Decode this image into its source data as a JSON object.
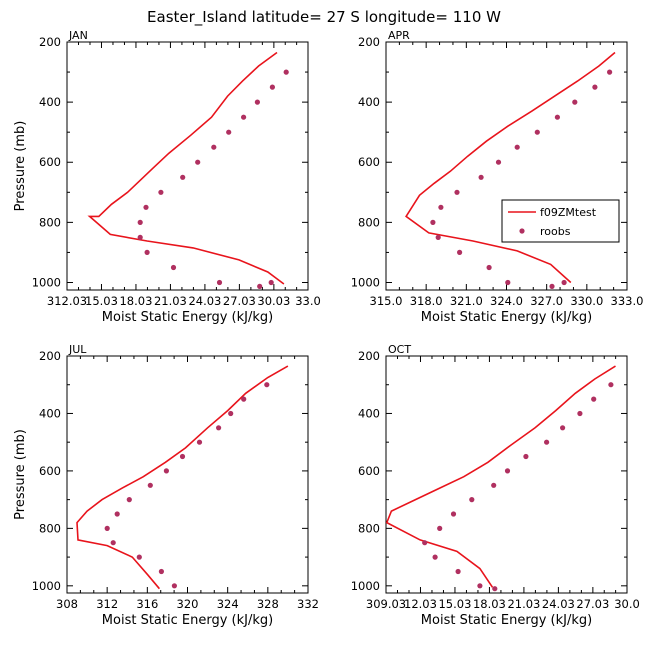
{
  "title": "Easter_Island  latitude= 27 S longitude= 110 W",
  "colors": {
    "model_line": "#e8141c",
    "obs_points": "#b03060"
  },
  "legend": {
    "panel_index": 1,
    "entries": [
      "f09ZMtest",
      "roobs"
    ]
  },
  "chart_data": [
    {
      "type": "line",
      "panel_label": "JAN",
      "xlabel": "Moist Static Energy (kJ/kg)",
      "ylabel": "Pressure (mb)",
      "xlim": [
        312.03,
        333.0
      ],
      "ylim": [
        1025,
        200
      ],
      "xticks": [
        312.03,
        315.03,
        318.03,
        321.03,
        324.03,
        327.03,
        330.03,
        333.0
      ],
      "xtick_labels": [
        "312.03",
        "15.03",
        "18.03",
        "21.03",
        "24.03",
        "27.03",
        "30.03",
        "33.0"
      ],
      "yticks": [
        200,
        400,
        600,
        800,
        1000
      ],
      "ytick_labels": [
        "200",
        "400",
        "600",
        "800",
        "1000"
      ],
      "series": [
        {
          "name": "f09ZMtest",
          "style": "line",
          "x": [
            330.3,
            328.7,
            327.3,
            326.0,
            324.6,
            322.8,
            320.9,
            319.5,
            318.4,
            317.3,
            315.9,
            314.8,
            314.0,
            315.8,
            319.0,
            323.0,
            327.0,
            329.5,
            330.9
          ],
          "y": [
            235,
            280,
            330,
            380,
            450,
            510,
            570,
            620,
            660,
            700,
            740,
            780,
            780,
            840,
            862,
            885,
            925,
            965,
            1005
          ]
        },
        {
          "name": "roobs",
          "style": "points",
          "x": [
            331.1,
            329.9,
            328.6,
            327.4,
            326.1,
            324.8,
            323.4,
            322.1,
            320.2,
            318.9,
            318.4,
            318.4,
            319.0,
            321.3,
            325.3,
            328.8,
            329.8
          ],
          "y": [
            300,
            350,
            400,
            450,
            500,
            550,
            600,
            650,
            700,
            750,
            800,
            850,
            900,
            950,
            1000,
            1013,
            1000
          ]
        }
      ]
    },
    {
      "type": "line",
      "panel_label": "APR",
      "xlabel": "Moist Static Energy (kJ/kg)",
      "ylabel": "Pressure (mb)",
      "xlim": [
        315.0,
        333.0
      ],
      "ylim": [
        1025,
        200
      ],
      "xticks": [
        315.0,
        318.0,
        321.0,
        324.0,
        327.0,
        330.0,
        333.0
      ],
      "xtick_labels": [
        "315.0",
        "318.0",
        "321.0",
        "324.0",
        "327.0",
        "330.0",
        "333.0"
      ],
      "yticks": [
        200,
        400,
        600,
        800,
        1000
      ],
      "ytick_labels": [
        "200",
        "400",
        "600",
        "800",
        "1000"
      ],
      "series": [
        {
          "name": "f09ZMtest",
          "style": "line",
          "x": [
            332.1,
            330.9,
            329.3,
            327.6,
            325.9,
            324.1,
            322.5,
            321.1,
            319.8,
            318.6,
            317.5,
            316.5,
            318.2,
            321.5,
            324.8,
            327.3,
            328.8
          ],
          "y": [
            235,
            280,
            330,
            380,
            430,
            480,
            530,
            580,
            630,
            670,
            710,
            780,
            835,
            862,
            895,
            940,
            1000
          ]
        },
        {
          "name": "roobs",
          "style": "points",
          "x": [
            331.7,
            330.6,
            329.1,
            327.8,
            326.3,
            324.8,
            323.4,
            322.1,
            320.3,
            319.1,
            318.5,
            318.9,
            320.5,
            322.7,
            324.1,
            327.4,
            328.3
          ],
          "y": [
            300,
            350,
            400,
            450,
            500,
            550,
            600,
            650,
            700,
            750,
            800,
            850,
            900,
            950,
            1000,
            1013,
            1000
          ]
        }
      ]
    },
    {
      "type": "line",
      "panel_label": "JUL",
      "xlabel": "Moist Static Energy (kJ/kg)",
      "ylabel": "Pressure (mb)",
      "xlim": [
        308,
        332
      ],
      "ylim": [
        1025,
        200
      ],
      "xticks": [
        308,
        312,
        316,
        320,
        324,
        328,
        332
      ],
      "xtick_labels": [
        "308",
        "312",
        "316",
        "320",
        "324",
        "328",
        "332"
      ],
      "yticks": [
        200,
        400,
        600,
        800,
        1000
      ],
      "ytick_labels": [
        "200",
        "400",
        "600",
        "800",
        "1000"
      ],
      "series": [
        {
          "name": "f09ZMtest",
          "style": "line",
          "x": [
            330.0,
            328.0,
            325.8,
            324.0,
            322.0,
            319.8,
            317.8,
            315.6,
            313.5,
            311.5,
            310.0,
            309.0,
            309.1,
            312.0,
            314.5,
            316.0,
            317.2
          ],
          "y": [
            235,
            275,
            330,
            390,
            450,
            520,
            570,
            620,
            660,
            700,
            740,
            780,
            840,
            860,
            900,
            960,
            1010
          ]
        },
        {
          "name": "roobs",
          "style": "points",
          "x": [
            327.9,
            325.6,
            324.3,
            323.1,
            321.2,
            319.5,
            317.9,
            316.3,
            314.2,
            313.0,
            312.0,
            312.6,
            315.2,
            317.4,
            318.7
          ],
          "y": [
            300,
            350,
            400,
            450,
            500,
            550,
            600,
            650,
            700,
            750,
            800,
            850,
            900,
            950,
            1000
          ]
        }
      ]
    },
    {
      "type": "line",
      "panel_label": "OCT",
      "xlabel": "Moist Static Energy (kJ/kg)",
      "ylabel": "Pressure (mb)",
      "xlim": [
        309.03,
        330.0
      ],
      "ylim": [
        1025,
        200
      ],
      "xticks": [
        309.03,
        312.03,
        315.03,
        318.03,
        321.03,
        324.03,
        327.03,
        330.0
      ],
      "xtick_labels": [
        "309.03",
        "12.03",
        "15.03",
        "18.03",
        "21.03",
        "24.03",
        "27.03",
        "30.0"
      ],
      "yticks": [
        200,
        400,
        600,
        800,
        1000
      ],
      "ytick_labels": [
        "200",
        "400",
        "600",
        "800",
        "1000"
      ],
      "series": [
        {
          "name": "f09ZMtest",
          "style": "line",
          "x": [
            329.0,
            327.2,
            325.5,
            323.8,
            322.0,
            319.9,
            317.9,
            315.8,
            313.7,
            311.6,
            309.5,
            309.1,
            312.0,
            315.2,
            317.2,
            318.3
          ],
          "y": [
            235,
            280,
            330,
            390,
            450,
            510,
            570,
            620,
            660,
            700,
            740,
            780,
            840,
            880,
            940,
            1005
          ]
        },
        {
          "name": "roobs",
          "style": "points",
          "x": [
            328.6,
            327.1,
            325.9,
            324.4,
            323.0,
            321.2,
            319.6,
            318.4,
            316.5,
            314.9,
            313.7,
            312.4,
            313.3,
            315.3,
            317.2,
            318.5
          ],
          "y": [
            300,
            350,
            400,
            450,
            500,
            550,
            600,
            650,
            700,
            750,
            800,
            850,
            900,
            950,
            1000,
            1010
          ]
        }
      ]
    }
  ]
}
